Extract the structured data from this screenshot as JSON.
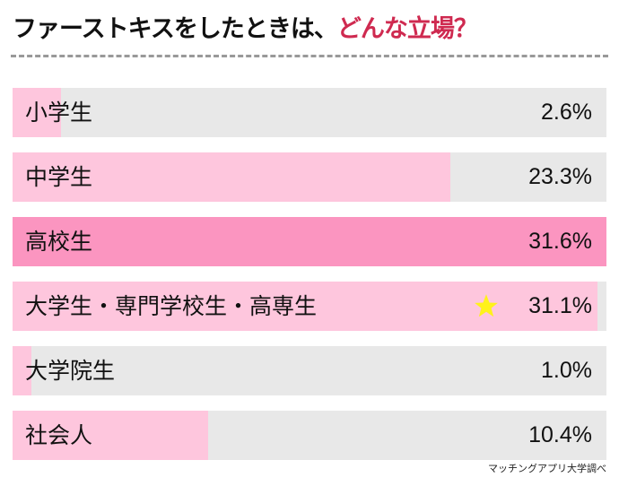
{
  "chart_data": {
    "type": "bar",
    "orientation": "horizontal",
    "title": "ファーストキスをしたときは、どんな立場？",
    "title_parts": [
      "ファーストキスをしたときは、",
      "どんな立場？"
    ],
    "categories": [
      "小学生",
      "中学生",
      "高校生",
      "大学生・専門学校生・高専生",
      "大学院生",
      "社会人"
    ],
    "values": [
      2.6,
      23.3,
      31.6,
      31.1,
      1.0,
      10.4
    ],
    "value_labels": [
      "2.6%",
      "23.3%",
      "31.6%",
      "31.1%",
      "1.0%",
      "10.4%"
    ],
    "highlight_index": 2,
    "star_index": 3,
    "source": "マッチングアプリ大学調べ",
    "colors": {
      "bar": "#fec6dd",
      "highlight": "#fb95c0",
      "track": "#e8e8e8",
      "accent": "#cf2a50",
      "star": "#fff21a"
    }
  }
}
